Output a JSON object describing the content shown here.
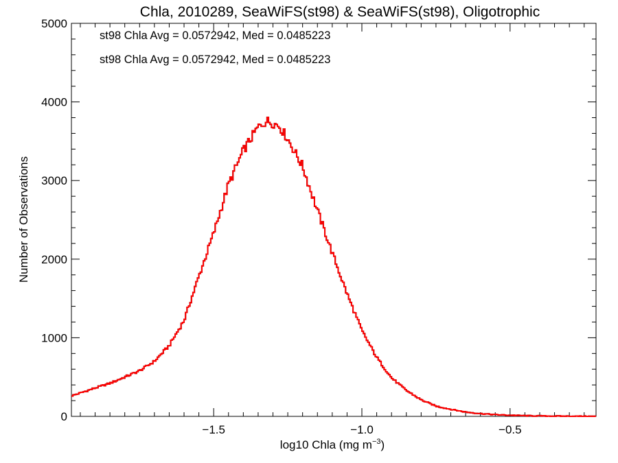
{
  "chart_data": {
    "type": "histogram",
    "title": "Chla, 2010289, SeaWiFS(st98) & SeaWiFS(st98), Oligotrophic",
    "xlabel_main": "log10 Chla (mg m",
    "xlabel_sup": "−3",
    "xlabel_close": ")",
    "ylabel": "Number of Observations",
    "xlim": [
      -1.98,
      -0.21
    ],
    "ylim": [
      0,
      5000
    ],
    "x_ticks": [
      -1.5,
      -1.0,
      -0.5
    ],
    "x_tick_labels": [
      "−1.5",
      "−1.0",
      "−0.5"
    ],
    "y_ticks": [
      0,
      1000,
      2000,
      3000,
      4000,
      5000
    ],
    "y_tick_labels": [
      "0",
      "1000",
      "2000",
      "3000",
      "4000",
      "5000"
    ],
    "annotations": [
      {
        "text": "st98 Chla Avg = 0.0572942, Med = 0.0485223",
        "color": "#000000"
      },
      {
        "text": "st98 Chla Avg = 0.0572942, Med = 0.0485223",
        "color": "#ff0000"
      }
    ],
    "series": [
      {
        "color": "#000000",
        "points": [
          [
            -1.98,
            260
          ],
          [
            -1.9,
            360
          ],
          [
            -1.85,
            420
          ],
          [
            -1.8,
            500
          ],
          [
            -1.75,
            580
          ],
          [
            -1.7,
            700
          ],
          [
            -1.65,
            900
          ],
          [
            -1.6,
            1220
          ],
          [
            -1.55,
            1780
          ],
          [
            -1.5,
            2330
          ],
          [
            -1.45,
            2950
          ],
          [
            -1.4,
            3380
          ],
          [
            -1.35,
            3680
          ],
          [
            -1.32,
            3760
          ],
          [
            -1.3,
            3730
          ],
          [
            -1.28,
            3700
          ],
          [
            -1.25,
            3530
          ],
          [
            -1.2,
            3180
          ],
          [
            -1.15,
            2620
          ],
          [
            -1.1,
            2080
          ],
          [
            -1.05,
            1560
          ],
          [
            -1.0,
            1090
          ],
          [
            -0.95,
            750
          ],
          [
            -0.9,
            490
          ],
          [
            -0.85,
            330
          ],
          [
            -0.8,
            210
          ],
          [
            -0.75,
            130
          ],
          [
            -0.7,
            90
          ],
          [
            -0.65,
            55
          ],
          [
            -0.6,
            35
          ],
          [
            -0.55,
            22
          ],
          [
            -0.5,
            14
          ],
          [
            -0.45,
            8
          ],
          [
            -0.4,
            5
          ],
          [
            -0.35,
            3
          ],
          [
            -0.3,
            2
          ],
          [
            -0.25,
            1
          ],
          [
            -0.21,
            0
          ]
        ]
      },
      {
        "color": "#ff0000",
        "points": [
          [
            -1.98,
            260
          ],
          [
            -1.9,
            360
          ],
          [
            -1.85,
            420
          ],
          [
            -1.8,
            500
          ],
          [
            -1.75,
            580
          ],
          [
            -1.7,
            700
          ],
          [
            -1.65,
            900
          ],
          [
            -1.6,
            1220
          ],
          [
            -1.55,
            1780
          ],
          [
            -1.5,
            2330
          ],
          [
            -1.45,
            2950
          ],
          [
            -1.4,
            3380
          ],
          [
            -1.35,
            3680
          ],
          [
            -1.32,
            3760
          ],
          [
            -1.3,
            3730
          ],
          [
            -1.28,
            3700
          ],
          [
            -1.25,
            3530
          ],
          [
            -1.2,
            3180
          ],
          [
            -1.15,
            2620
          ],
          [
            -1.1,
            2080
          ],
          [
            -1.05,
            1560
          ],
          [
            -1.0,
            1090
          ],
          [
            -0.95,
            750
          ],
          [
            -0.9,
            490
          ],
          [
            -0.85,
            330
          ],
          [
            -0.8,
            210
          ],
          [
            -0.75,
            130
          ],
          [
            -0.7,
            90
          ],
          [
            -0.65,
            55
          ],
          [
            -0.6,
            35
          ],
          [
            -0.55,
            22
          ],
          [
            -0.5,
            14
          ],
          [
            -0.45,
            8
          ],
          [
            -0.4,
            5
          ],
          [
            -0.35,
            3
          ],
          [
            -0.3,
            2
          ],
          [
            -0.25,
            1
          ],
          [
            -0.21,
            0
          ]
        ]
      }
    ]
  }
}
